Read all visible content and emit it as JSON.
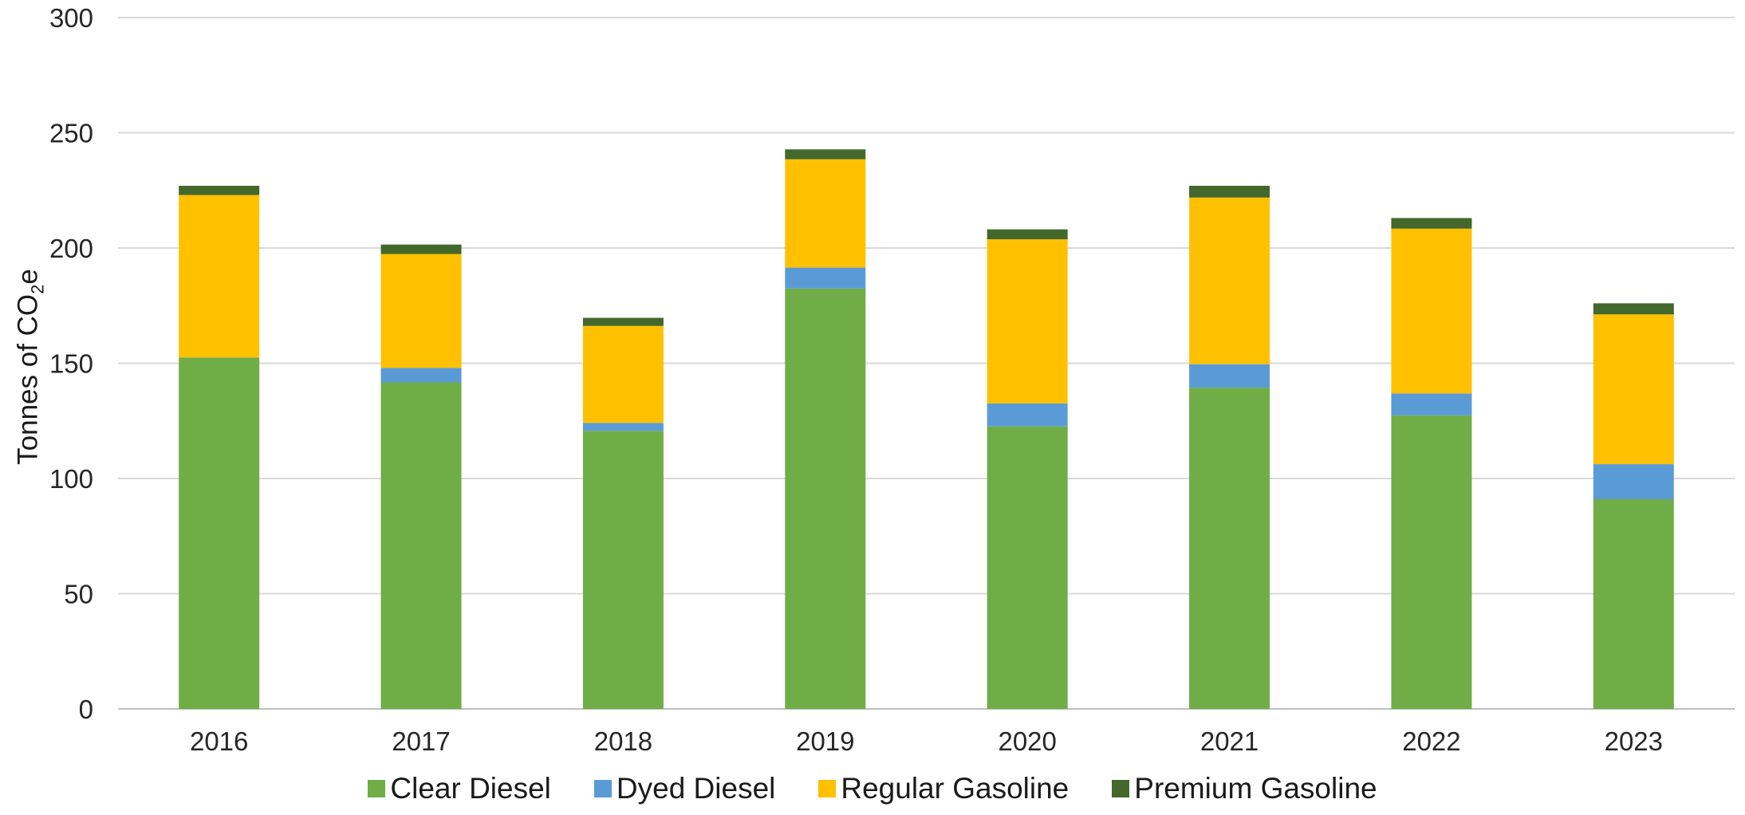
{
  "chart_data": {
    "type": "bar",
    "stacked": true,
    "categories": [
      "2016",
      "2017",
      "2018",
      "2019",
      "2020",
      "2021",
      "2022",
      "2023"
    ],
    "series": [
      {
        "name": "Clear Diesel",
        "color": "#70AD47",
        "values": [
          152.5,
          141.7,
          120.7,
          182.4,
          122.6,
          139.4,
          127.4,
          91.0
        ]
      },
      {
        "name": "Dyed Diesel",
        "color": "#5B9BD5",
        "values": [
          0.0,
          6.3,
          3.4,
          9.1,
          10.0,
          10.2,
          9.5,
          15.2
        ]
      },
      {
        "name": "Regular Gasoline",
        "color": "#FFC000",
        "values": [
          70.5,
          49.4,
          42.1,
          47.0,
          71.2,
          72.3,
          71.5,
          65.0
        ]
      },
      {
        "name": "Premium Gasoline",
        "color": "#43682B",
        "values": [
          4.0,
          4.1,
          3.5,
          4.3,
          4.3,
          5.1,
          4.6,
          4.8
        ]
      }
    ],
    "ylabel_main": "Tonnes of CO",
    "ylabel_sub": "2",
    "ylabel_tail": "e",
    "yticks": [
      "0",
      "50",
      "100",
      "150",
      "200",
      "250",
      "300"
    ],
    "ylim": [
      0,
      300
    ],
    "grid": true,
    "legend_position": "bottom"
  }
}
